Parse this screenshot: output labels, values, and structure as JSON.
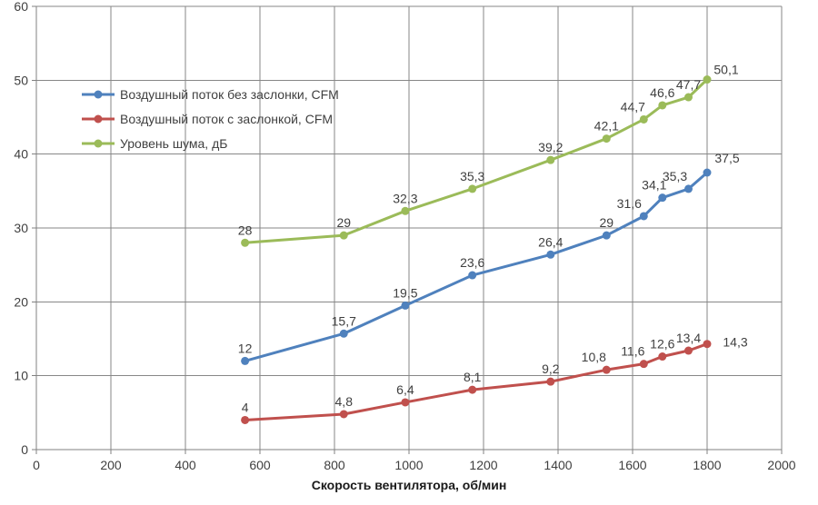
{
  "chart_data": {
    "type": "line",
    "title": "",
    "xlabel": "Скорость вентилятора, об/мин",
    "ylabel": "",
    "xlim": [
      0,
      2000
    ],
    "ylim": [
      0,
      60
    ],
    "x_ticks": [
      0,
      200,
      400,
      600,
      800,
      1000,
      1200,
      1400,
      1600,
      1800,
      2000
    ],
    "x_tick_labels": [
      "0",
      "200",
      "400",
      "600",
      "800",
      "1000",
      "1200",
      "1400",
      "1600",
      "1800",
      "2000"
    ],
    "y_ticks": [
      0,
      10,
      20,
      30,
      40,
      50,
      60
    ],
    "y_tick_labels": [
      "0",
      "10",
      "20",
      "30",
      "40",
      "50",
      "60"
    ],
    "grid": true,
    "legend_position": "inside-top-left",
    "x": [
      560,
      825,
      990,
      1170,
      1380,
      1530,
      1630,
      1680,
      1750,
      1800
    ],
    "series": [
      {
        "name": "Воздушный поток без заслонки, CFM",
        "color": "#4F81BD",
        "values": [
          12,
          15.7,
          19.5,
          23.6,
          26.4,
          29,
          31.6,
          34.1,
          35.3,
          37.5
        ],
        "labels": [
          "12",
          "15,7",
          "19,5",
          "23,6",
          "26,4",
          "29",
          "31,6",
          "34,1",
          "35,3",
          "37,5"
        ]
      },
      {
        "name": "Воздушный поток с заслонкой, CFM",
        "color": "#C0504D",
        "values": [
          4,
          4.8,
          6.4,
          8.1,
          9.2,
          10.8,
          11.6,
          12.6,
          13.4,
          14.3
        ],
        "labels": [
          "4",
          "4,8",
          "6,4",
          "8,1",
          "9,2",
          "10,8",
          "11,6",
          "12,6",
          "13,4",
          "14,3"
        ]
      },
      {
        "name": "Уровень шума, дБ",
        "color": "#9BBB59",
        "values": [
          28,
          29,
          32.3,
          35.3,
          39.2,
          42.1,
          44.7,
          46.6,
          47.7,
          50.1
        ],
        "labels": [
          "28",
          "29",
          "32,3",
          "35,3",
          "39,2",
          "42,1",
          "44,7",
          "46,6",
          "47,7",
          "50,1"
        ]
      }
    ],
    "colors": {
      "gridline": "#878787",
      "axis": "#808080",
      "tick_text": "#3f3f3f",
      "data_label_text": "#3f3f3f",
      "background": "#ffffff"
    }
  }
}
